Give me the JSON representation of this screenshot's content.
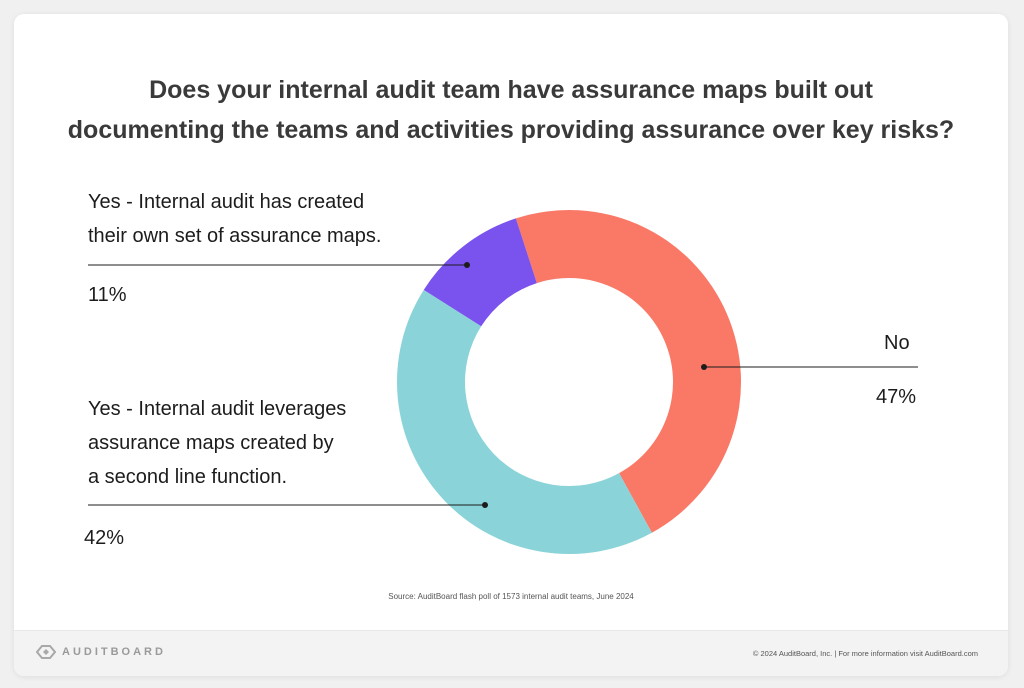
{
  "title_line1": "Does your internal audit team have assurance maps built out",
  "title_line2": "documenting the teams and activities providing assurance over key risks?",
  "chart_data": {
    "type": "pie",
    "donut": true,
    "title": "Does your internal audit team have assurance maps built out documenting the teams and activities providing assurance over key risks?",
    "slices": [
      {
        "label": "No",
        "value": 47,
        "display": "47%",
        "color": "#F97866"
      },
      {
        "label": "Yes - Internal audit leverages assurance maps created by a second line function.",
        "value": 42,
        "display": "42%",
        "color": "#8AD4D9"
      },
      {
        "label": "Yes - Internal audit has created their own set of assurance maps.",
        "value": 11,
        "display": "11%",
        "color": "#7A52EE"
      }
    ]
  },
  "labels": {
    "yes_own_line1": "Yes - Internal audit has created",
    "yes_own_line2": "their own set of assurance maps.",
    "yes_second_line1": "Yes - Internal audit leverages",
    "yes_second_line2": "assurance maps created by",
    "yes_second_line3": "a second line function.",
    "no": "No"
  },
  "source": "Source: AuditBoard flash poll of 1573 internal audit teams, June 2024",
  "footer": {
    "logo_text": "AUDITBOARD",
    "copyright": "© 2024  AuditBoard, Inc.   |   For more information visit AuditBoard.com"
  },
  "colors": {
    "title": "#3a3a3a",
    "footer_bg": "#f3f3f3"
  }
}
